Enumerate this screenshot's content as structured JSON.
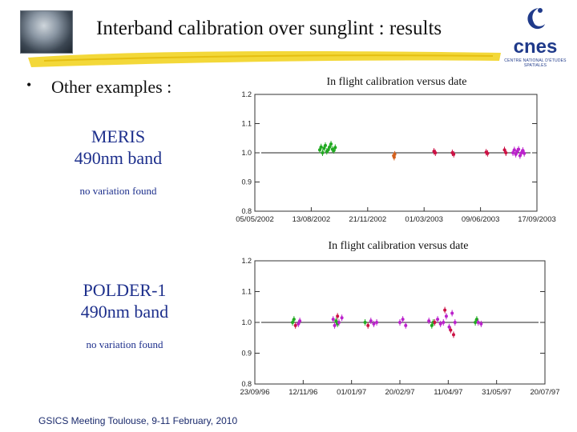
{
  "header": {
    "title": "Interband calibration over sunglint : results",
    "logo_text": "cnes",
    "logo_subtext": "CENTRE NATIONAL D'ÉTUDES SPATIALES"
  },
  "bullet": {
    "marker": "•",
    "text": "Other examples :"
  },
  "sections": [
    {
      "band_line1": "MERIS",
      "band_line2": "490nm band",
      "note": "no variation found"
    },
    {
      "band_line1": "POLDER-1",
      "band_line2": "490nm band",
      "note": "no variation found"
    }
  ],
  "footer": {
    "text": "GSICS Meeting Toulouse, 9-11 February, 2010"
  },
  "colors": {
    "band_text": "#1d2f8c",
    "brush": "#f2d62e",
    "logo": "#1f3a8a"
  },
  "chart_data": [
    {
      "type": "scatter",
      "title": "In flight calibration versus date",
      "x_ticks": [
        "05/05/2002",
        "13/08/2002",
        "21/11/2002",
        "01/03/2003",
        "09/06/2003",
        "17/09/2003"
      ],
      "y_ticks": [
        "0.8",
        "0.9",
        "1.0",
        "1.1",
        "1.2"
      ],
      "ylim": [
        0.8,
        1.2
      ],
      "grid": false,
      "reference_line": 1.0,
      "series": [
        {
          "color": "#22aa22",
          "points": [
            [
              0.23,
              1.01
            ],
            [
              0.235,
              1.02
            ],
            [
              0.24,
              1.0
            ],
            [
              0.245,
              1.015
            ],
            [
              0.25,
              1.025
            ],
            [
              0.255,
              1.005
            ],
            [
              0.26,
              1.01
            ],
            [
              0.265,
              1.02
            ],
            [
              0.27,
              1.03
            ],
            [
              0.275,
              1.012
            ],
            [
              0.28,
              1.008
            ],
            [
              0.285,
              1.018
            ]
          ]
        },
        {
          "color": "#d4601c",
          "points": [
            [
              0.492,
              0.99
            ],
            [
              0.494,
              0.985
            ],
            [
              0.496,
              0.995
            ]
          ]
        },
        {
          "color": "#cc1144",
          "points": [
            [
              0.635,
              1.005
            ],
            [
              0.64,
              1.0
            ],
            [
              0.7,
              1.0
            ],
            [
              0.705,
              0.995
            ],
            [
              0.82,
              1.002
            ],
            [
              0.825,
              0.998
            ],
            [
              0.885,
              1.01
            ],
            [
              0.89,
              1.0
            ]
          ]
        },
        {
          "color": "#bb22cc",
          "points": [
            [
              0.915,
              1.0
            ],
            [
              0.92,
              1.01
            ],
            [
              0.925,
              0.995
            ],
            [
              0.93,
              1.005
            ],
            [
              0.935,
              1.012
            ],
            [
              0.94,
              0.99
            ],
            [
              0.945,
              1.0
            ],
            [
              0.95,
              1.008
            ],
            [
              0.955,
              0.998
            ]
          ]
        }
      ]
    },
    {
      "type": "scatter",
      "title": "In flight calibration versus date",
      "x_ticks": [
        "23/09/96",
        "12/11/96",
        "01/01/97",
        "20/02/97",
        "11/04/97",
        "31/05/97",
        "20/07/97"
      ],
      "y_ticks": [
        "0.8",
        "0.9",
        "1.0",
        "1.1",
        "1.2"
      ],
      "ylim": [
        0.8,
        1.2
      ],
      "grid": false,
      "reference_line": 1.0,
      "series": [
        {
          "color": "#22aa22",
          "points": [
            [
              0.13,
              1.0
            ],
            [
              0.135,
              1.01
            ],
            [
              0.28,
              1.005
            ],
            [
              0.285,
              0.995
            ],
            [
              0.38,
              1.0
            ],
            [
              0.61,
              0.99
            ],
            [
              0.615,
              1.0
            ],
            [
              0.76,
              1.0
            ],
            [
              0.765,
              1.01
            ]
          ]
        },
        {
          "color": "#bb22cc",
          "points": [
            [
              0.15,
              0.995
            ],
            [
              0.155,
              1.005
            ],
            [
              0.27,
              1.01
            ],
            [
              0.275,
              0.99
            ],
            [
              0.29,
              1.0
            ],
            [
              0.3,
              1.015
            ],
            [
              0.4,
              1.005
            ],
            [
              0.41,
              0.995
            ],
            [
              0.42,
              1.0
            ],
            [
              0.5,
              1.0
            ],
            [
              0.51,
              1.01
            ],
            [
              0.52,
              0.99
            ],
            [
              0.6,
              1.005
            ],
            [
              0.63,
              1.01
            ],
            [
              0.64,
              0.995
            ],
            [
              0.65,
              1.0
            ],
            [
              0.66,
              1.02
            ],
            [
              0.67,
              0.985
            ],
            [
              0.68,
              1.03
            ],
            [
              0.69,
              1.0
            ],
            [
              0.77,
              1.0
            ],
            [
              0.78,
              0.995
            ]
          ]
        },
        {
          "color": "#cc1144",
          "points": [
            [
              0.14,
              0.99
            ],
            [
              0.285,
              1.02
            ],
            [
              0.39,
              0.99
            ],
            [
              0.62,
              1.0
            ],
            [
              0.655,
              1.04
            ],
            [
              0.675,
              0.975
            ],
            [
              0.685,
              0.96
            ]
          ]
        }
      ]
    }
  ]
}
